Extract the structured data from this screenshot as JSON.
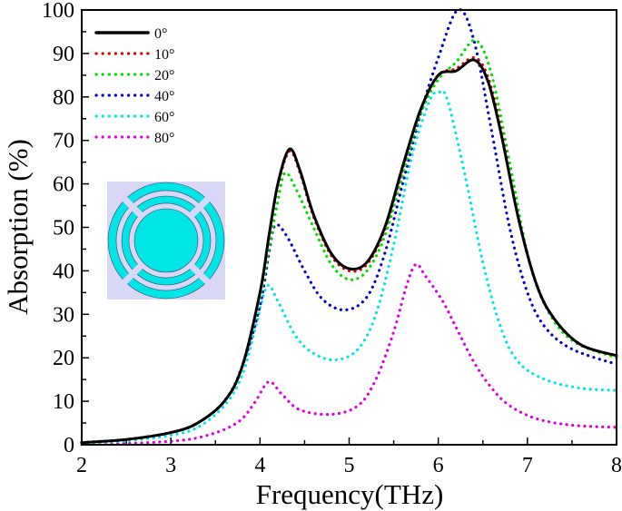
{
  "chart_data": {
    "type": "line",
    "xlabel": "Frequency(THz)",
    "ylabel": "Absorption (%)",
    "xlim": [
      2,
      8
    ],
    "ylim": [
      0,
      100
    ],
    "xticks": [
      "2",
      "3",
      "4",
      "5",
      "6",
      "7",
      "8"
    ],
    "yticks": [
      "0",
      "10",
      "20",
      "30",
      "40",
      "50",
      "60",
      "70",
      "80",
      "90",
      "100"
    ],
    "grid": false,
    "legend_position": "top-left",
    "inset_colors": {
      "background": "#d8d8f6",
      "metal": "#00e5e5"
    },
    "series": [
      {
        "name": "0°",
        "color": "#000000",
        "style": "solid",
        "points": [
          [
            2,
            0.5
          ],
          [
            2.5,
            1.2
          ],
          [
            3,
            2.8
          ],
          [
            3.3,
            5
          ],
          [
            3.6,
            10
          ],
          [
            3.8,
            18
          ],
          [
            4.0,
            35
          ],
          [
            4.1,
            48
          ],
          [
            4.2,
            60
          ],
          [
            4.33,
            68
          ],
          [
            4.45,
            63
          ],
          [
            4.6,
            53
          ],
          [
            4.8,
            44
          ],
          [
            5.0,
            40.5
          ],
          [
            5.2,
            42
          ],
          [
            5.4,
            50
          ],
          [
            5.6,
            64
          ],
          [
            5.8,
            77
          ],
          [
            6.0,
            85
          ],
          [
            6.2,
            86
          ],
          [
            6.4,
            88.5
          ],
          [
            6.55,
            84
          ],
          [
            6.7,
            72
          ],
          [
            6.9,
            52
          ],
          [
            7.1,
            37
          ],
          [
            7.3,
            29
          ],
          [
            7.6,
            23
          ],
          [
            8,
            20.5
          ]
        ]
      },
      {
        "name": "10°",
        "color": "#e00000",
        "style": "dotted",
        "points": [
          [
            2,
            0.5
          ],
          [
            2.5,
            1.2
          ],
          [
            3,
            2.8
          ],
          [
            3.3,
            5
          ],
          [
            3.6,
            10
          ],
          [
            3.8,
            18
          ],
          [
            4.0,
            35
          ],
          [
            4.1,
            47.5
          ],
          [
            4.2,
            59.5
          ],
          [
            4.33,
            67.5
          ],
          [
            4.45,
            62.5
          ],
          [
            4.6,
            52.5
          ],
          [
            4.8,
            43.5
          ],
          [
            5.0,
            40
          ],
          [
            5.2,
            41.5
          ],
          [
            5.4,
            49.5
          ],
          [
            5.6,
            63.5
          ],
          [
            5.8,
            77
          ],
          [
            6.0,
            85
          ],
          [
            6.2,
            86.5
          ],
          [
            6.4,
            89
          ],
          [
            6.55,
            85
          ],
          [
            6.7,
            73
          ],
          [
            6.9,
            52
          ],
          [
            7.1,
            37
          ],
          [
            7.3,
            29
          ],
          [
            7.6,
            23
          ],
          [
            8,
            20.5
          ]
        ]
      },
      {
        "name": "20°",
        "color": "#00dd00",
        "style": "dotted",
        "points": [
          [
            2,
            0.5
          ],
          [
            2.5,
            1.2
          ],
          [
            3,
            2.8
          ],
          [
            3.3,
            5
          ],
          [
            3.6,
            10
          ],
          [
            3.8,
            18
          ],
          [
            4.0,
            34
          ],
          [
            4.1,
            45
          ],
          [
            4.2,
            56
          ],
          [
            4.28,
            62.5
          ],
          [
            4.4,
            59
          ],
          [
            4.6,
            50
          ],
          [
            4.8,
            41.5
          ],
          [
            5.0,
            38
          ],
          [
            5.2,
            40
          ],
          [
            5.4,
            48
          ],
          [
            5.6,
            62
          ],
          [
            5.8,
            76
          ],
          [
            6.0,
            84
          ],
          [
            6.2,
            88
          ],
          [
            6.42,
            93
          ],
          [
            6.6,
            85
          ],
          [
            6.8,
            65
          ],
          [
            7.0,
            44
          ],
          [
            7.2,
            32
          ],
          [
            7.5,
            24
          ],
          [
            8,
            20
          ]
        ]
      },
      {
        "name": "40°",
        "color": "#0000cc",
        "style": "dotted",
        "points": [
          [
            2,
            0.5
          ],
          [
            2.5,
            1.2
          ],
          [
            3,
            2.8
          ],
          [
            3.3,
            5
          ],
          [
            3.6,
            10
          ],
          [
            3.8,
            18
          ],
          [
            4.0,
            32
          ],
          [
            4.1,
            44
          ],
          [
            4.17,
            50.5
          ],
          [
            4.3,
            48
          ],
          [
            4.5,
            40
          ],
          [
            4.7,
            33.5
          ],
          [
            4.95,
            31
          ],
          [
            5.2,
            34
          ],
          [
            5.4,
            44
          ],
          [
            5.6,
            60
          ],
          [
            5.8,
            76
          ],
          [
            6.0,
            89
          ],
          [
            6.22,
            100
          ],
          [
            6.4,
            93
          ],
          [
            6.6,
            72
          ],
          [
            6.8,
            50
          ],
          [
            7.0,
            35
          ],
          [
            7.2,
            27
          ],
          [
            7.5,
            22
          ],
          [
            8,
            18.5
          ]
        ]
      },
      {
        "name": "60°",
        "color": "#00e5e5",
        "style": "dotted",
        "points": [
          [
            2,
            0.3
          ],
          [
            2.5,
            0.9
          ],
          [
            3,
            2.2
          ],
          [
            3.3,
            4
          ],
          [
            3.6,
            9
          ],
          [
            3.8,
            16
          ],
          [
            3.95,
            27
          ],
          [
            4.08,
            36.5
          ],
          [
            4.2,
            33
          ],
          [
            4.4,
            25
          ],
          [
            4.6,
            21
          ],
          [
            4.85,
            19.5
          ],
          [
            5.1,
            22
          ],
          [
            5.3,
            30
          ],
          [
            5.5,
            46
          ],
          [
            5.7,
            66
          ],
          [
            5.9,
            79
          ],
          [
            6.0,
            81
          ],
          [
            6.1,
            79.5
          ],
          [
            6.3,
            62
          ],
          [
            6.5,
            42
          ],
          [
            6.7,
            27
          ],
          [
            6.9,
            19
          ],
          [
            7.2,
            15
          ],
          [
            7.6,
            13
          ],
          [
            8,
            12.5
          ]
        ]
      },
      {
        "name": "80°",
        "color": "#e000e0",
        "style": "dotted",
        "points": [
          [
            2,
            0.1
          ],
          [
            2.5,
            0.3
          ],
          [
            3,
            0.8
          ],
          [
            3.3,
            1.6
          ],
          [
            3.6,
            3.5
          ],
          [
            3.8,
            6
          ],
          [
            3.95,
            10
          ],
          [
            4.1,
            14.5
          ],
          [
            4.25,
            11.5
          ],
          [
            4.45,
            8
          ],
          [
            4.8,
            7
          ],
          [
            5.1,
            9
          ],
          [
            5.3,
            15
          ],
          [
            5.5,
            26
          ],
          [
            5.65,
            37
          ],
          [
            5.75,
            41.5
          ],
          [
            5.85,
            39
          ],
          [
            6.05,
            33
          ],
          [
            6.2,
            27
          ],
          [
            6.4,
            19
          ],
          [
            6.6,
            13
          ],
          [
            6.8,
            9
          ],
          [
            7.1,
            6
          ],
          [
            7.5,
            4.5
          ],
          [
            8,
            4
          ]
        ]
      }
    ]
  }
}
